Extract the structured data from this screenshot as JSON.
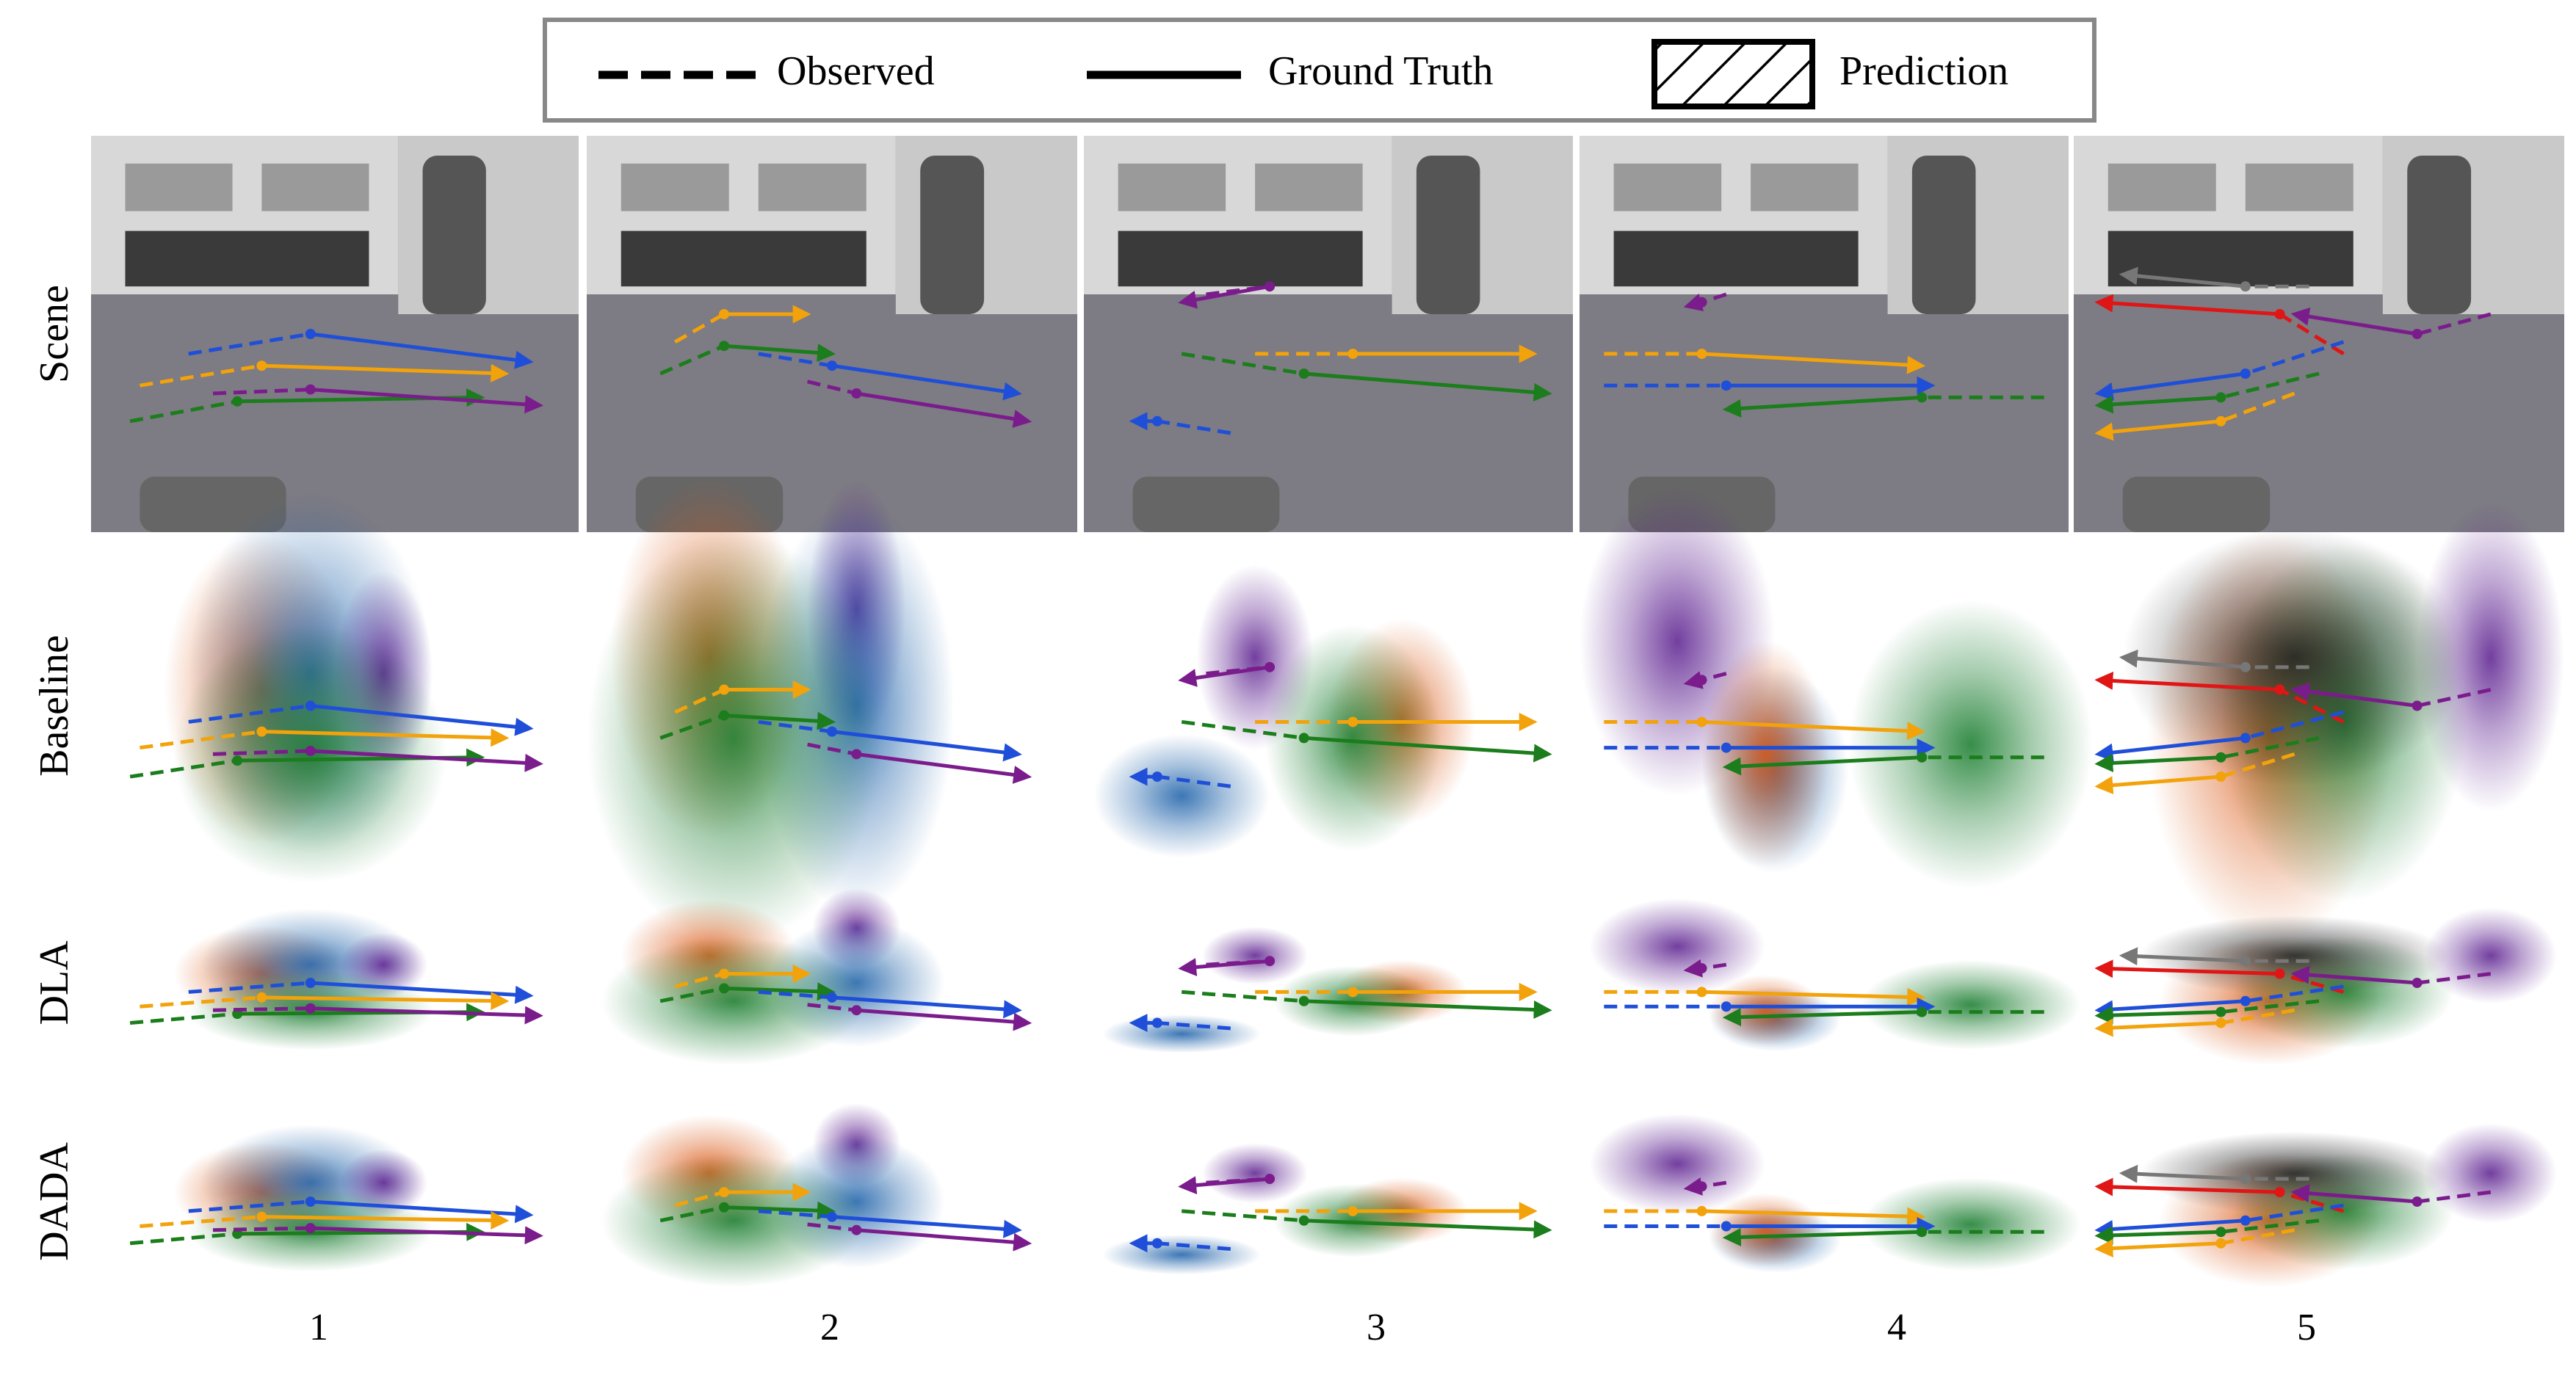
{
  "legend": {
    "observed": "Observed",
    "ground_truth": "Ground Truth",
    "prediction": "Prediction"
  },
  "rows": [
    "Scene",
    "Baseline",
    "DLA",
    "DADA"
  ],
  "columns": [
    "1",
    "2",
    "3",
    "4",
    "5"
  ]
}
